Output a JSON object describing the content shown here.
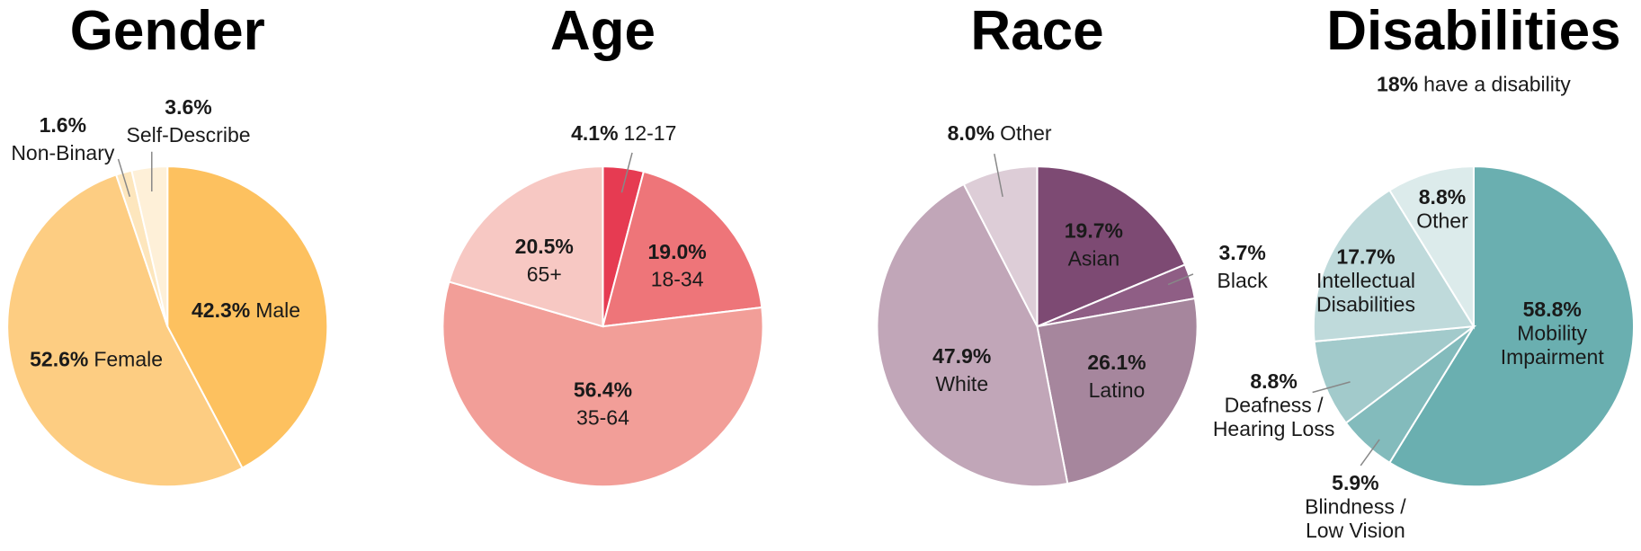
{
  "chart_data": [
    {
      "type": "pie",
      "title": "Gender",
      "categories": [
        "Male",
        "Female",
        "Non-Binary",
        "Self-Describe"
      ],
      "values": [
        42.3,
        52.6,
        1.6,
        3.6
      ],
      "value_labels": [
        "42.3%",
        "52.6%",
        "1.6%",
        "3.6%"
      ],
      "colors": [
        "#fdc15f",
        "#fdcd82",
        "#fde6bd",
        "#fef0d8"
      ]
    },
    {
      "type": "pie",
      "title": "Age",
      "categories": [
        "12-17",
        "18-34",
        "35-64",
        "65+"
      ],
      "values": [
        4.1,
        19.0,
        56.4,
        20.5
      ],
      "value_labels": [
        "4.1%",
        "19.0%",
        "56.4%",
        "20.5%"
      ],
      "colors": [
        "#e63b52",
        "#ee7579",
        "#f29e98",
        "#f7c8c3"
      ]
    },
    {
      "type": "pie",
      "title": "Race",
      "categories": [
        "Asian",
        "Black",
        "Latino",
        "White",
        "Other"
      ],
      "values": [
        19.7,
        3.7,
        26.1,
        47.9,
        8.0
      ],
      "value_labels": [
        "19.7%",
        "3.7%",
        "26.1%",
        "47.9%",
        "8.0%"
      ],
      "colors": [
        "#7d4a73",
        "#8f5e85",
        "#a6869d",
        "#c1a6b8",
        "#ddcdd7"
      ]
    },
    {
      "type": "pie",
      "title": "Disabilities",
      "subtitle": [
        "18%",
        "have a disability"
      ],
      "categories": [
        [
          "Mobility",
          "Impairment"
        ],
        [
          "Blindness /",
          "Low Vision"
        ],
        [
          "Deafness /",
          "Hearing Loss"
        ],
        [
          "Intellectual",
          "Disabilities"
        ],
        [
          "Other"
        ]
      ],
      "values": [
        58.8,
        5.9,
        8.8,
        17.7,
        8.8
      ],
      "value_labels": [
        "58.8%",
        "5.9%",
        "8.8%",
        "17.7%",
        "8.8%"
      ],
      "colors": [
        "#6aafb0",
        "#83bbbc",
        "#a2cacb",
        "#bfdadb",
        "#dcebeb"
      ]
    }
  ]
}
